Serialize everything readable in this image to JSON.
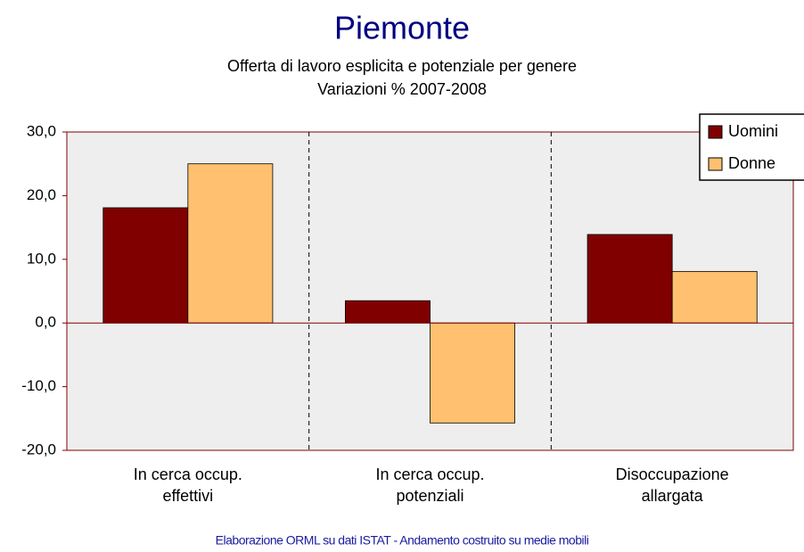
{
  "chart_data": {
    "type": "bar",
    "title": "Piemonte",
    "subtitle": [
      "Offerta di lavoro esplicita e potenziale per genere",
      "Variazioni % 2007-2008"
    ],
    "categories": [
      "In cerca occup.\neffettivi",
      "In cerca occup.\npotenziali",
      "Disoccupazione\nallargata"
    ],
    "series": [
      {
        "name": "Uomini",
        "color": "#800000",
        "values": [
          18.1,
          3.5,
          13.9
        ]
      },
      {
        "name": "Donne",
        "color": "#ffc070",
        "values": [
          25.0,
          -15.7,
          8.1
        ]
      }
    ],
    "ylim": [
      -20,
      30
    ],
    "yticks": [
      {
        "value": -20,
        "label": "-20,0"
      },
      {
        "value": -10,
        "label": "-10,0"
      },
      {
        "value": 0,
        "label": "0,0"
      },
      {
        "value": 10,
        "label": "10,0"
      },
      {
        "value": 20,
        "label": "20,0"
      },
      {
        "value": 30,
        "label": "30,0"
      }
    ],
    "grid": false,
    "legend": "top-right",
    "footer": "Elaborazione ORML su dati ISTAT - Andamento costruito su medie mobili"
  }
}
